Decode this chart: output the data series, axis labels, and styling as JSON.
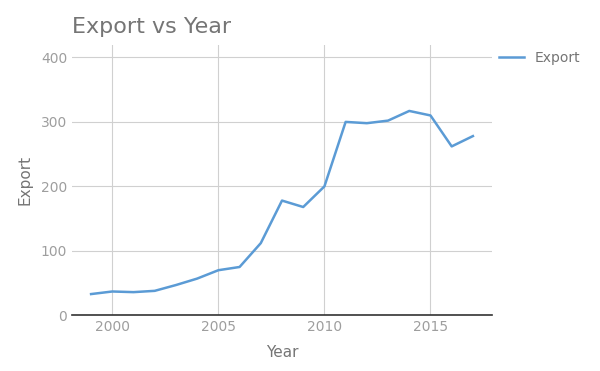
{
  "years": [
    1999,
    2000,
    2001,
    2002,
    2003,
    2004,
    2005,
    2006,
    2007,
    2008,
    2009,
    2010,
    2011,
    2012,
    2013,
    2014,
    2015,
    2016,
    2017
  ],
  "exports": [
    33,
    37,
    36,
    38,
    47,
    57,
    70,
    75,
    112,
    178,
    168,
    200,
    300,
    298,
    302,
    317,
    310,
    262,
    278
  ],
  "title": "Export vs Year",
  "xlabel": "Year",
  "ylabel": "Export",
  "legend_label": "Export",
  "line_color": "#5b9bd5",
  "background_color": "#ffffff",
  "grid_color": "#d0d0d0",
  "ylim": [
    0,
    420
  ],
  "yticks": [
    0,
    100,
    200,
    300,
    400
  ],
  "xticks": [
    2000,
    2005,
    2010,
    2015
  ],
  "title_fontsize": 16,
  "label_fontsize": 11,
  "tick_fontsize": 10,
  "legend_fontsize": 10,
  "title_color": "#757575",
  "axis_label_color": "#757575",
  "tick_color": "#9e9e9e"
}
